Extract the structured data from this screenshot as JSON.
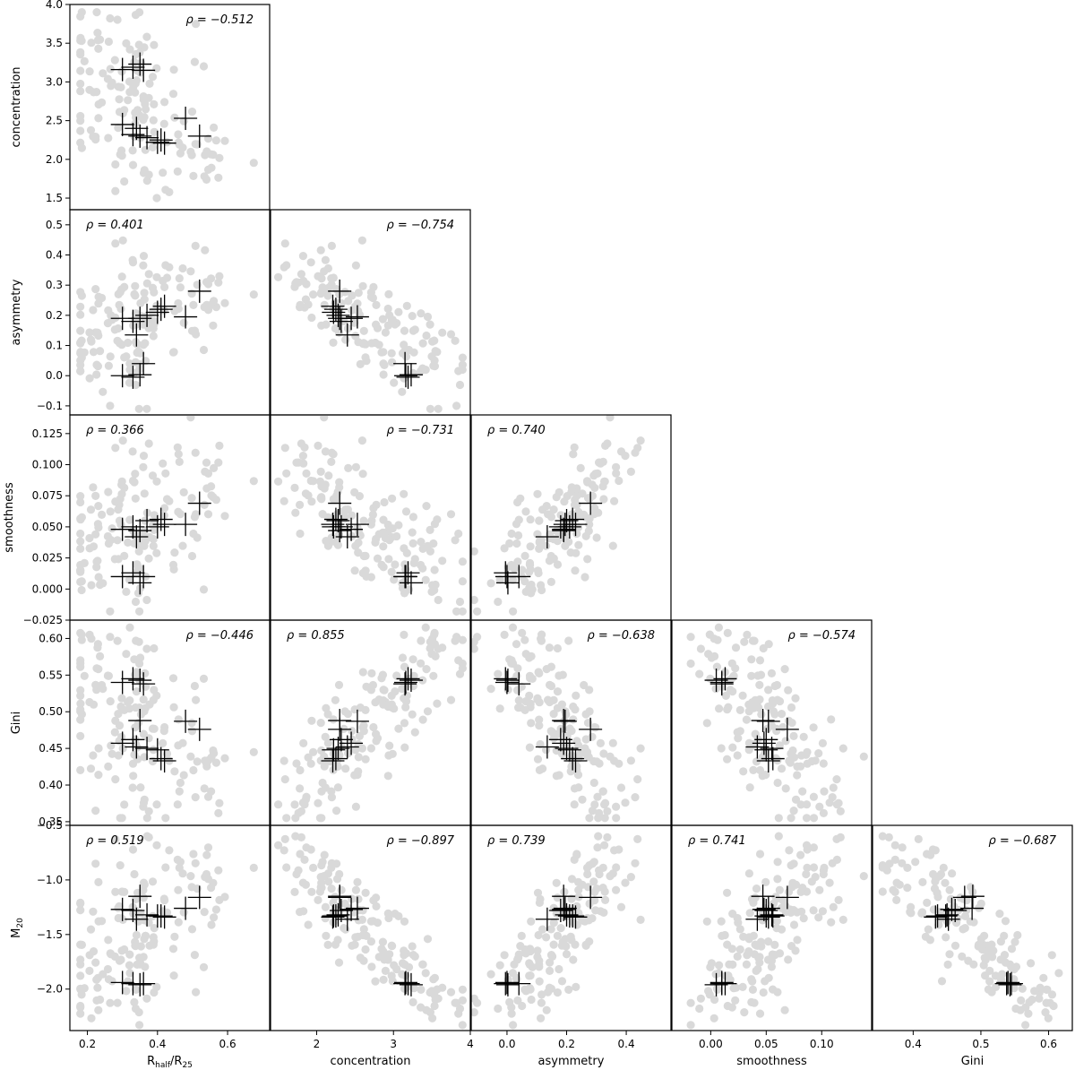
{
  "chart_data": {
    "type": "scatter",
    "layout": "corner-plot",
    "colors": {
      "background_points": "#d9d9d9",
      "highlight_markers": "#000000"
    },
    "variables": [
      {
        "key": "rhalf",
        "label": "R",
        "label_sub1": "half",
        "label_mid": "/R",
        "label_sub2": "25",
        "ticks": [
          0.2,
          0.4,
          0.6
        ],
        "tick_labels": [
          "0.2",
          "0.4",
          "0.6"
        ],
        "range": [
          0.15,
          0.72
        ]
      },
      {
        "key": "conc",
        "label": "concentration",
        "ticks_x": [
          2,
          3,
          4
        ],
        "tick_labels_x": [
          "2",
          "3",
          "4"
        ],
        "range_x": [
          1.4,
          4.0
        ],
        "ticks_y": [
          1.5,
          2.0,
          2.5,
          3.0,
          3.5,
          4.0
        ],
        "tick_labels_y": [
          "1.5",
          "2.0",
          "2.5",
          "3.0",
          "3.5",
          "4.0"
        ],
        "range_y": [
          1.35,
          4.0
        ]
      },
      {
        "key": "asym",
        "label": "asymmetry",
        "ticks_x": [
          0.0,
          0.2,
          0.4
        ],
        "tick_labels_x": [
          "0.0",
          "0.2",
          "0.4"
        ],
        "range_x": [
          -0.12,
          0.55
        ],
        "ticks_y": [
          -0.1,
          0.0,
          0.1,
          0.2,
          0.3,
          0.4,
          0.5
        ],
        "tick_labels_y": [
          "−0.1",
          "0.0",
          "0.1",
          "0.2",
          "0.3",
          "0.4",
          "0.5"
        ],
        "range_y": [
          -0.13,
          0.55
        ]
      },
      {
        "key": "smooth",
        "label": "smoothness",
        "ticks_x": [
          0.0,
          0.05,
          0.1
        ],
        "tick_labels_x": [
          "0.00",
          "0.05",
          "0.10"
        ],
        "range_x": [
          -0.035,
          0.145
        ],
        "ticks_y": [
          -0.025,
          0.0,
          0.025,
          0.05,
          0.075,
          0.1,
          0.125
        ],
        "tick_labels_y": [
          "−0.025",
          "0.000",
          "0.025",
          "0.050",
          "0.075",
          "0.100",
          "0.125"
        ],
        "range_y": [
          -0.025,
          0.14
        ]
      },
      {
        "key": "gini",
        "label": "Gini",
        "ticks_x": [
          0.4,
          0.5,
          0.6
        ],
        "tick_labels_x": [
          "0.4",
          "0.5",
          "0.6"
        ],
        "range_x": [
          0.34,
          0.635
        ],
        "ticks_y": [
          0.35,
          0.4,
          0.45,
          0.5,
          0.55,
          0.6
        ],
        "tick_labels_y": [
          "0.35",
          "0.40",
          "0.45",
          "0.50",
          "0.55",
          "0.60"
        ],
        "range_y": [
          0.345,
          0.625
        ]
      },
      {
        "key": "m20",
        "label": "M",
        "label_sub1": "20",
        "ticks_y": [
          -2.0,
          -1.5,
          -1.0,
          -0.5
        ],
        "tick_labels_y": [
          "−2.0",
          "−1.5",
          "−1.0",
          "−0.5"
        ],
        "range_y": [
          -2.38,
          -0.5
        ]
      }
    ],
    "panels": [
      {
        "x": "rhalf",
        "y": "conc",
        "rho": "ρ = −0.512",
        "rho_pos": "top-right"
      },
      {
        "x": "rhalf",
        "y": "asym",
        "rho": "ρ = 0.401",
        "rho_pos": "top-left"
      },
      {
        "x": "conc",
        "y": "asym",
        "rho": "ρ = −0.754",
        "rho_pos": "top-right"
      },
      {
        "x": "rhalf",
        "y": "smooth",
        "rho": "ρ = 0.366",
        "rho_pos": "top-left"
      },
      {
        "x": "conc",
        "y": "smooth",
        "rho": "ρ = −0.731",
        "rho_pos": "top-right"
      },
      {
        "x": "asym",
        "y": "smooth",
        "rho": "ρ = 0.740",
        "rho_pos": "top-left"
      },
      {
        "x": "rhalf",
        "y": "gini",
        "rho": "ρ = −0.446",
        "rho_pos": "top-right"
      },
      {
        "x": "conc",
        "y": "gini",
        "rho": "ρ = 0.855",
        "rho_pos": "top-left"
      },
      {
        "x": "asym",
        "y": "gini",
        "rho": "ρ = −0.638",
        "rho_pos": "top-right"
      },
      {
        "x": "smooth",
        "y": "gini",
        "rho": "ρ = −0.574",
        "rho_pos": "top-right"
      },
      {
        "x": "rhalf",
        "y": "m20",
        "rho": "ρ = 0.519",
        "rho_pos": "top-left"
      },
      {
        "x": "conc",
        "y": "m20",
        "rho": "ρ = −0.897",
        "rho_pos": "top-right"
      },
      {
        "x": "asym",
        "y": "m20",
        "rho": "ρ = 0.739",
        "rho_pos": "top-left"
      },
      {
        "x": "smooth",
        "y": "m20",
        "rho": "ρ = 0.741",
        "rho_pos": "top-left"
      },
      {
        "x": "gini",
        "y": "m20",
        "rho": "ρ = −0.687",
        "rho_pos": "top-right"
      }
    ],
    "highlighted": [
      {
        "rhalf": 0.3,
        "conc": 3.16,
        "asym": 0.0,
        "smooth": 0.01,
        "gini": 0.54,
        "m20": -1.94
      },
      {
        "rhalf": 0.33,
        "conc": 3.19,
        "asym": -0.005,
        "smooth": 0.013,
        "gini": 0.545,
        "m20": -1.95
      },
      {
        "rhalf": 0.35,
        "conc": 3.23,
        "asym": 0.003,
        "smooth": 0.005,
        "gini": 0.543,
        "m20": -1.96
      },
      {
        "rhalf": 0.36,
        "conc": 3.15,
        "asym": 0.04,
        "smooth": 0.01,
        "gini": 0.538,
        "m20": -1.95
      },
      {
        "rhalf": 0.3,
        "conc": 2.45,
        "asym": 0.19,
        "smooth": 0.048,
        "gini": 0.457,
        "m20": -1.27
      },
      {
        "rhalf": 0.33,
        "conc": 2.32,
        "asym": 0.18,
        "smooth": 0.05,
        "gini": 0.462,
        "m20": -1.28
      },
      {
        "rhalf": 0.34,
        "conc": 2.4,
        "asym": 0.135,
        "smooth": 0.042,
        "gini": 0.452,
        "m20": -1.36
      },
      {
        "rhalf": 0.35,
        "conc": 2.3,
        "asym": 0.19,
        "smooth": 0.047,
        "gini": 0.488,
        "m20": -1.15
      },
      {
        "rhalf": 0.37,
        "conc": 2.28,
        "asym": 0.2,
        "smooth": 0.055,
        "gini": 0.45,
        "m20": -1.32
      },
      {
        "rhalf": 0.4,
        "conc": 2.22,
        "asym": 0.21,
        "smooth": 0.05,
        "gini": 0.448,
        "m20": -1.33
      },
      {
        "rhalf": 0.41,
        "conc": 2.25,
        "asym": 0.22,
        "smooth": 0.056,
        "gini": 0.436,
        "m20": -1.33
      },
      {
        "rhalf": 0.42,
        "conc": 2.21,
        "asym": 0.23,
        "smooth": 0.052,
        "gini": 0.433,
        "m20": -1.34
      },
      {
        "rhalf": 0.48,
        "conc": 2.53,
        "asym": 0.195,
        "smooth": 0.052,
        "gini": 0.487,
        "m20": -1.26
      },
      {
        "rhalf": 0.52,
        "conc": 2.3,
        "asym": 0.28,
        "smooth": 0.069,
        "gini": 0.476,
        "m20": -1.16
      }
    ],
    "population_trends": {
      "rhalf_range": [
        0.18,
        0.68
      ],
      "conc_range": [
        1.5,
        3.9
      ],
      "asym_range": [
        -0.11,
        0.52
      ],
      "smooth_range": [
        -0.018,
        0.138
      ],
      "gini_range": [
        0.355,
        0.615
      ],
      "m20_range": [
        -2.33,
        -0.55
      ],
      "n_points": 150
    }
  }
}
